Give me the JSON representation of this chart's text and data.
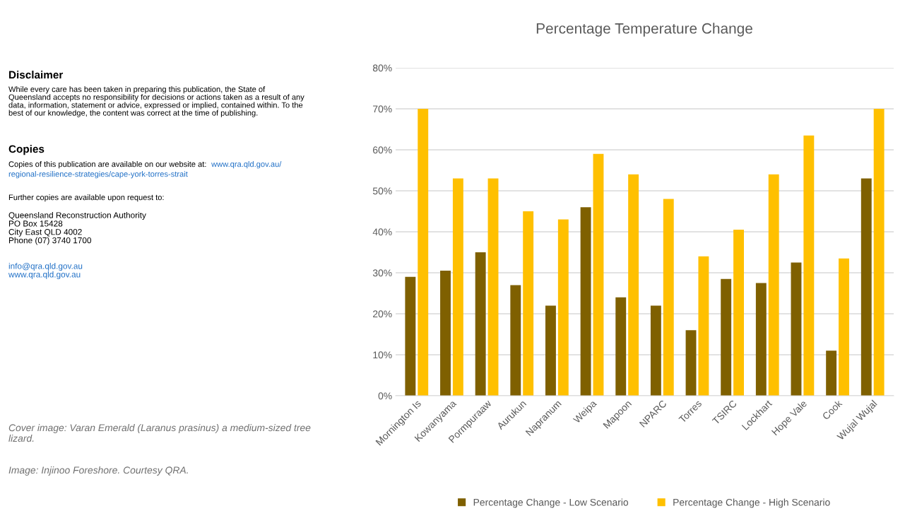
{
  "chart_data": {
    "type": "bar",
    "title": "Percentage Temperature Change",
    "categories": [
      "Mornington Is",
      "Kowanyama",
      "Pormpuraaw",
      "Aurukun",
      "Napranum",
      "Weipa",
      "Mapoon",
      "NPARC",
      "Torres",
      "TSIRC",
      "Lockhart",
      "Hope Vale",
      "Cook",
      "Wujal Wujal"
    ],
    "series": [
      {
        "name": "Percentage Change - Low Scenario",
        "color": "#7f6000",
        "values": [
          29,
          30.5,
          35,
          27,
          22,
          46,
          24,
          22,
          16,
          28.5,
          27.5,
          32.5,
          11,
          53
        ]
      },
      {
        "name": "Percentage Change - High Scenario",
        "color": "#ffc000",
        "values": [
          70,
          53,
          53,
          45,
          43,
          59,
          54,
          48,
          34,
          40.5,
          54,
          63.5,
          33.5,
          70
        ]
      }
    ],
    "ylim": [
      0,
      80
    ],
    "yticks": [
      {
        "value": 0,
        "label": "0%"
      },
      {
        "value": 10,
        "label": "10%"
      },
      {
        "value": 20,
        "label": "20%"
      },
      {
        "value": 30,
        "label": "30%"
      },
      {
        "value": 40,
        "label": "40%"
      },
      {
        "value": 50,
        "label": "50%"
      },
      {
        "value": 60,
        "label": "60%"
      },
      {
        "value": 70,
        "label": "70%"
      },
      {
        "value": 80,
        "label": "80%"
      }
    ],
    "grid": "y",
    "legend": "bottom",
    "annotations": [
      "Disclaimer",
      "While every care has been taken in preparing this publication, the State of\nQueensland accepts no responsibility for decisions or actions taken as a result of any\ndata, information, statement or advice, expressed or implied, contained within. To the\nbest of our knowledge, the content was correct at the time of publishing.",
      "Copies",
      "Copies of this publication are available on our website at:",
      "www.qra.qld.gov.au/",
      "regional-resilience-strategies/cape-york-torres-strait",
      "Further copies are available upon request to:",
      "Queensland Reconstruction Authority\nPO Box 15428\nCity East QLD 4002\nPhone (07) 3740 1700",
      "info@qra.qld.gov.au\nwww.qra.qld.gov.au",
      "Cover image: Varan Emerald (Laranus prasinus) a medium-sized tree\nlizard.",
      "Image: Injinoo Foreshore. Courtesy QRA."
    ]
  }
}
